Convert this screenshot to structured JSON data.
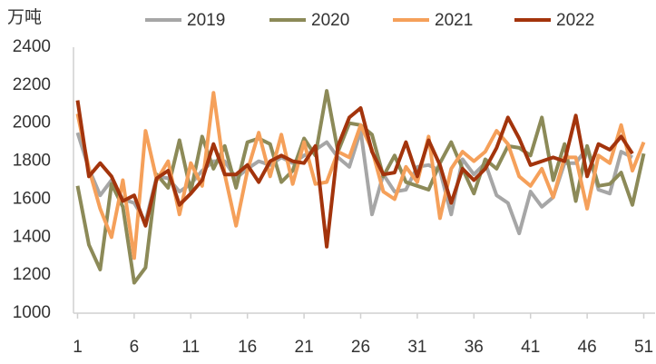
{
  "chart_data": {
    "type": "line",
    "y_label": "万吨",
    "x": [
      1,
      2,
      3,
      4,
      5,
      6,
      7,
      8,
      9,
      10,
      11,
      12,
      13,
      14,
      15,
      16,
      17,
      18,
      19,
      20,
      21,
      22,
      23,
      24,
      25,
      26,
      27,
      28,
      29,
      30,
      31,
      32,
      33,
      34,
      35,
      36,
      37,
      38,
      39,
      40,
      41,
      42,
      43,
      44,
      45,
      46,
      47,
      48,
      49,
      50,
      51
    ],
    "xlim": [
      0,
      52
    ],
    "xticks": [
      1,
      6,
      11,
      16,
      21,
      26,
      31,
      36,
      41,
      46,
      51
    ],
    "ylim": [
      1000,
      2400
    ],
    "yticks": [
      1000,
      1200,
      1400,
      1600,
      1800,
      2000,
      2200,
      2400
    ],
    "grid": false,
    "legend": "top",
    "series": [
      {
        "name": "2019",
        "color": "#a6a6a6",
        "values": [
          1950,
          1760,
          1620,
          1700,
          1600,
          1580,
          1480,
          1720,
          1710,
          1640,
          1680,
          1750,
          1800,
          1800,
          1710,
          1760,
          1800,
          1780,
          1820,
          1790,
          1830,
          1860,
          1900,
          1820,
          1770,
          1960,
          1520,
          1730,
          1640,
          1650,
          1770,
          1780,
          1750,
          1520,
          1810,
          1730,
          1790,
          1620,
          1580,
          1420,
          1640,
          1560,
          1610,
          1790,
          1790,
          1870,
          1650,
          1630,
          1850,
          1820,
          null
        ]
      },
      {
        "name": "2020",
        "color": "#8c8a58",
        "values": [
          1670,
          1360,
          1230,
          1680,
          1560,
          1160,
          1240,
          1730,
          1660,
          1910,
          1640,
          1930,
          1760,
          1880,
          1660,
          1900,
          1920,
          1890,
          1690,
          1750,
          1920,
          1830,
          2170,
          1850,
          2000,
          1990,
          1940,
          1720,
          1830,
          1690,
          1670,
          1650,
          1790,
          1900,
          1760,
          1630,
          1810,
          1760,
          1880,
          1870,
          1830,
          2030,
          1700,
          1890,
          1590,
          1880,
          1670,
          1680,
          1740,
          1570,
          1840
        ]
      },
      {
        "name": "2021",
        "color": "#f5a05a",
        "values": [
          2050,
          1760,
          1550,
          1400,
          1700,
          1290,
          1960,
          1700,
          1800,
          1520,
          1790,
          1670,
          2160,
          1730,
          1460,
          1750,
          1950,
          1720,
          1940,
          1680,
          1900,
          1680,
          1690,
          1850,
          1820,
          1990,
          1860,
          1640,
          1600,
          1770,
          1690,
          1930,
          1500,
          1760,
          1850,
          1800,
          1850,
          1960,
          1890,
          1720,
          1670,
          1760,
          1610,
          1820,
          1820,
          1550,
          1830,
          1790,
          1990,
          1750,
          1900
        ]
      },
      {
        "name": "2022",
        "color": "#a3340c",
        "values": [
          2120,
          1720,
          1790,
          1720,
          1590,
          1620,
          1460,
          1710,
          1750,
          1570,
          1630,
          1700,
          1890,
          1730,
          1730,
          1780,
          1690,
          1800,
          1830,
          1800,
          1790,
          1880,
          1350,
          1880,
          2030,
          2080,
          1850,
          1730,
          1740,
          1900,
          1720,
          1910,
          1780,
          1580,
          1760,
          1700,
          1760,
          1870,
          2030,
          1920,
          1780,
          1800,
          1820,
          1800,
          2040,
          1720,
          1890,
          1860,
          1930,
          1840,
          null
        ]
      }
    ]
  }
}
